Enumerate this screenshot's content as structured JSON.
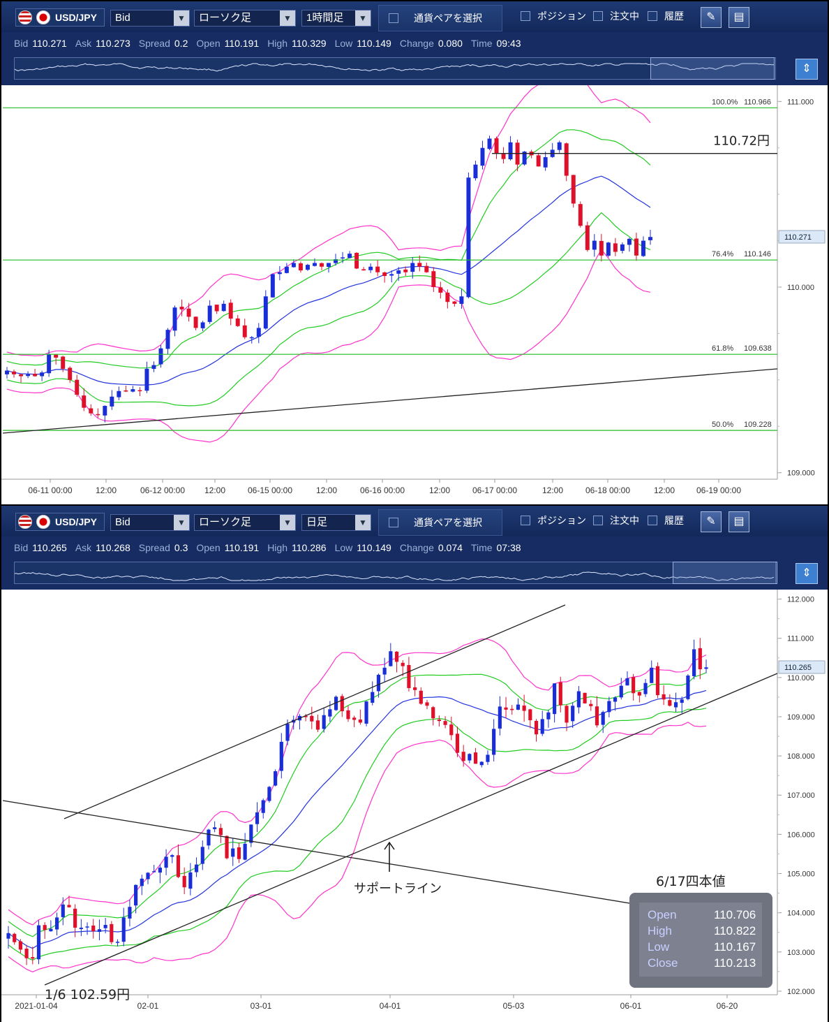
{
  "panels": [
    {
      "symbol": "USD/JPY",
      "price_type": "Bid",
      "chart_style": "ローソク足",
      "interval": "1時間足",
      "pair_button": "通貨ペアを選択",
      "checks": [
        "ポジション",
        "注文中",
        "履歴"
      ],
      "quote": [
        {
          "k": "Bid",
          "v": "110.271"
        },
        {
          "k": "Ask",
          "v": "110.273"
        },
        {
          "k": "Spread",
          "v": "0.2"
        },
        {
          "k": "Open",
          "v": "110.191"
        },
        {
          "k": "High",
          "v": "110.329"
        },
        {
          "k": "Low",
          "v": "110.149"
        },
        {
          "k": "Change",
          "v": "0.080"
        },
        {
          "k": "Time",
          "v": "09:43"
        }
      ]
    },
    {
      "symbol": "USD/JPY",
      "price_type": "Bid",
      "chart_style": "ローソク足",
      "interval": "日足",
      "pair_button": "通貨ペアを選択",
      "checks": [
        "ポジション",
        "注文中",
        "履歴"
      ],
      "quote": [
        {
          "k": "Bid",
          "v": "110.265"
        },
        {
          "k": "Ask",
          "v": "110.268"
        },
        {
          "k": "Spread",
          "v": "0.3"
        },
        {
          "k": "Open",
          "v": "110.191"
        },
        {
          "k": "High",
          "v": "110.286"
        },
        {
          "k": "Low",
          "v": "110.149"
        },
        {
          "k": "Change",
          "v": "0.074"
        },
        {
          "k": "Time",
          "v": "07:38"
        }
      ]
    }
  ],
  "colors": {
    "up": "#1a2ed8",
    "down": "#e0102a",
    "bb2": "#ff33cc",
    "bb1": "#22cc22",
    "ma": "#2233dd",
    "fib": "#22bb22",
    "line": "#222222"
  },
  "chart_data": [
    {
      "type": "candlestick",
      "interval": "1時間足",
      "ylim": [
        108.98,
        111.05
      ],
      "y_ticks": [
        "111.000",
        "110.000",
        "109.000"
      ],
      "x_ticks": [
        "06-11 00:00",
        "12:00",
        "06-12 00:00",
        "12:00",
        "06-15 00:00",
        "12:00",
        "06-16 00:00",
        "12:00",
        "06-17 00:00",
        "12:00",
        "06-18 00:00",
        "12:00",
        "06-19 00:00"
      ],
      "current_price": "110.271",
      "fibonacci": [
        {
          "label": "100.0%",
          "value": "110.966"
        },
        {
          "label": "76.4%",
          "value": "110.146"
        },
        {
          "label": "61.8%",
          "value": "109.638"
        },
        {
          "label": "50.0%",
          "value": "109.228"
        }
      ],
      "resistance_label": "110.72円",
      "resistance": 110.72,
      "closes": [
        109.55,
        109.53,
        109.52,
        109.53,
        109.52,
        109.54,
        109.64,
        109.62,
        109.56,
        109.5,
        109.42,
        109.35,
        109.32,
        109.31,
        109.36,
        109.41,
        109.44,
        109.44,
        109.45,
        109.44,
        109.56,
        109.58,
        109.67,
        109.77,
        109.89,
        109.88,
        109.84,
        109.78,
        109.81,
        109.9,
        109.87,
        109.91,
        109.83,
        109.79,
        109.73,
        109.73,
        109.78,
        109.95,
        110.07,
        110.08,
        110.11,
        110.13,
        110.09,
        110.12,
        110.13,
        110.11,
        110.13,
        110.15,
        110.16,
        110.18,
        110.1,
        110.09,
        110.11,
        110.08,
        110.06,
        110.07,
        110.09,
        110.08,
        110.13,
        110.11,
        110.08,
        110.0,
        109.97,
        109.92,
        109.91,
        109.95,
        110.59,
        110.66,
        110.75,
        110.8,
        110.72,
        110.69,
        110.78,
        110.66,
        110.73,
        110.71,
        110.65,
        110.7,
        110.74,
        110.78,
        110.6,
        110.45,
        110.33,
        110.2,
        110.25,
        110.17,
        110.24,
        110.19,
        110.23,
        110.26,
        110.17,
        110.25,
        110.27
      ]
    },
    {
      "type": "candlestick",
      "interval": "日足",
      "ylim": [
        101.98,
        112.1
      ],
      "y_ticks": [
        "112.000",
        "111.000",
        "110.000",
        "109.000",
        "108.000",
        "107.000",
        "106.000",
        "105.000",
        "104.000",
        "103.000",
        "102.000"
      ],
      "x_ticks": [
        "2021-01-04",
        "02-01",
        "03-01",
        "04-01",
        "05-03",
        "06-01",
        "06-20"
      ],
      "current_price": "110.265",
      "low_label": "1/6  102.59円",
      "support_label": "サポートライン",
      "ohlc_title": "6/17四本値",
      "ohlc": [
        {
          "k": "Open",
          "v": "110.706"
        },
        {
          "k": "High",
          "v": "110.822"
        },
        {
          "k": "Low",
          "v": "110.167"
        },
        {
          "k": "Close",
          "v": "110.213"
        }
      ],
      "closes": [
        103.48,
        103.25,
        103.06,
        102.84,
        102.83,
        103.68,
        103.56,
        103.59,
        103.88,
        104.21,
        104.14,
        103.62,
        103.62,
        103.65,
        103.53,
        103.58,
        103.69,
        103.25,
        103.26,
        103.88,
        104.15,
        104.71,
        104.87,
        105.02,
        105.06,
        105.15,
        105.43,
        105.47,
        104.91,
        104.65,
        105.03,
        105.23,
        105.68,
        106.12,
        106.18,
        105.98,
        105.39,
        105.64,
        105.37,
        105.76,
        106.25,
        106.56,
        106.87,
        107.21,
        107.61,
        108.36,
        108.82,
        108.92,
        109.02,
        108.99,
        108.88,
        108.67,
        109.04,
        109.19,
        109.51,
        109.14,
        108.94,
        108.92,
        108.85,
        109.39,
        109.63,
        110.07,
        110.25,
        110.67,
        110.4,
        110.29,
        109.73,
        109.68,
        109.33,
        109.28,
        108.96,
        108.89,
        108.79,
        108.53,
        108.08,
        107.87,
        108.05,
        107.8,
        107.85,
        108.03,
        108.69,
        109.26,
        109.18,
        109.17,
        109.31,
        109.15,
        108.91,
        108.55,
        108.94,
        109.11,
        109.85,
        109.29,
        108.85,
        109.28,
        109.65,
        109.34,
        109.27,
        108.78,
        109.12,
        109.4,
        109.49,
        109.79,
        109.98,
        109.6,
        109.54,
        109.86,
        110.25,
        109.55,
        109.44,
        109.28,
        109.37,
        109.44,
        110.05,
        110.72,
        110.21,
        110.26
      ]
    }
  ]
}
